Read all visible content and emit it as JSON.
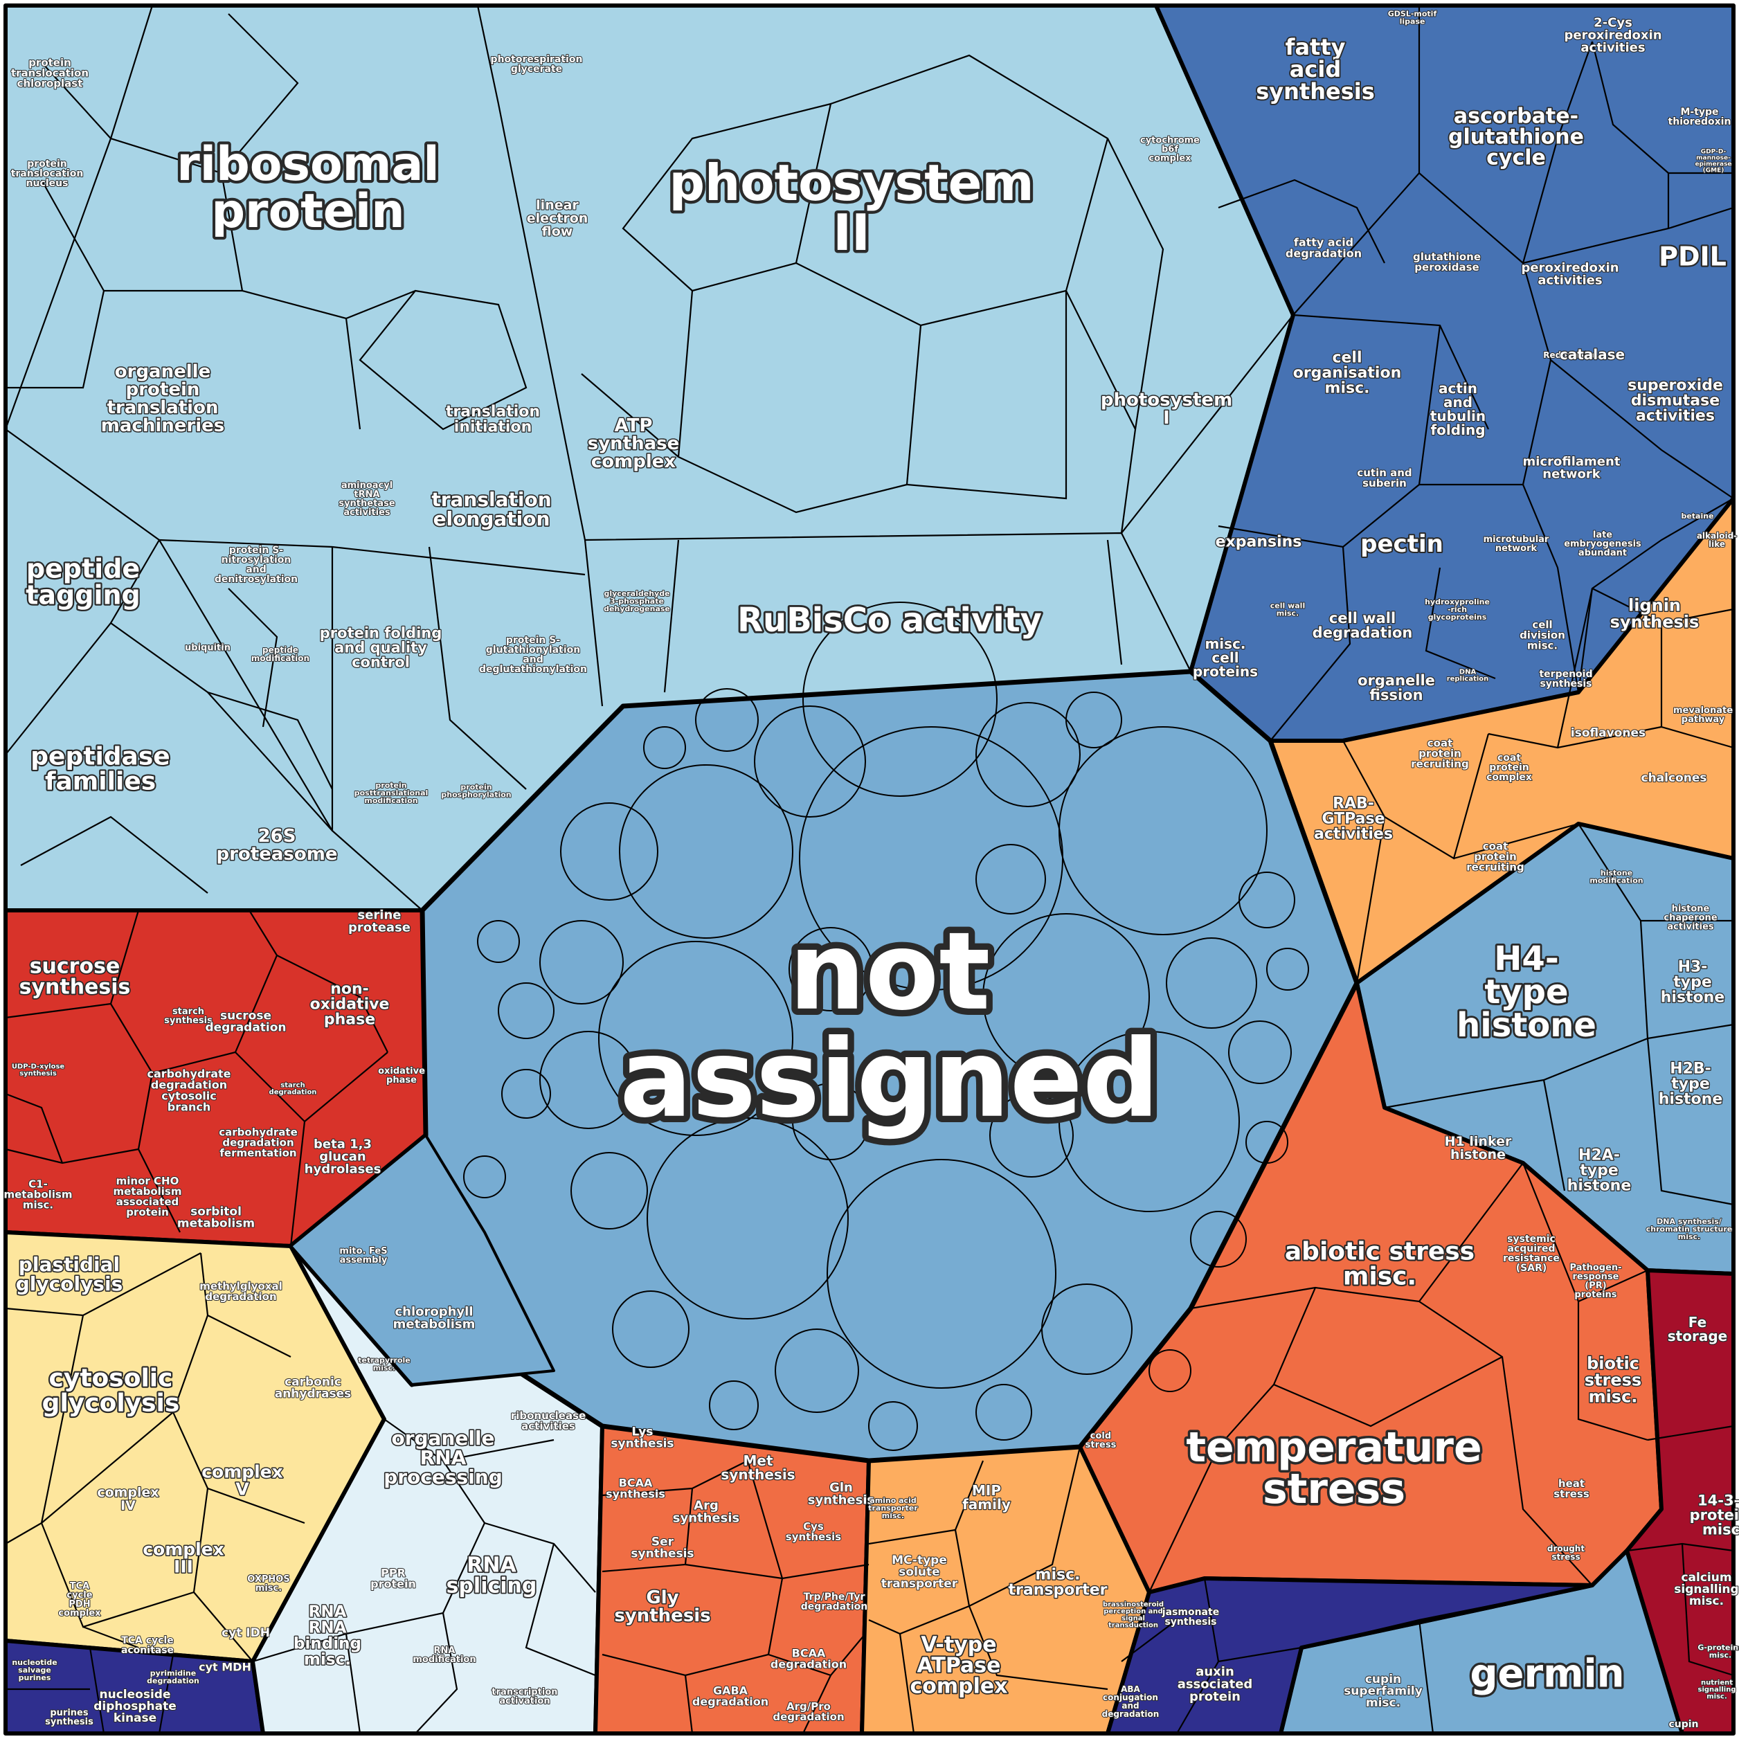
{
  "palette": {
    "light_blue": "#a8d4e6",
    "mid_blue": "#77acd2",
    "dark_blue": "#4672b3",
    "navy": "#2f2f8e",
    "red": "#d8332a",
    "yellow": "#fde69d",
    "pale_blue": "#e2f1f8",
    "orange_red": "#f06d44",
    "orange": "#fdad5f",
    "crimson": "#a50f2a",
    "border": "#000000",
    "label_fill": "#ffffff"
  },
  "labels": {
    "not_assigned": [
      "not",
      "assigned"
    ],
    "ribosomal_protein": [
      "ribosomal",
      "protein"
    ],
    "photosystem_ii": [
      "photosystem",
      "II"
    ],
    "photosystem_i": [
      "photosystem",
      "I"
    ],
    "rubisco": [
      "RuBisCo activity"
    ],
    "atp_synthase": [
      "ATP",
      "synthase",
      "complex"
    ],
    "linear_electron_flow": [
      "linear",
      "electron",
      "flow"
    ],
    "photorespiration": [
      "photorespiration",
      "glycerate"
    ],
    "cytochrome_b6f": [
      "cytochrome",
      "b6f",
      "complex"
    ],
    "translation_initiation": [
      "translation",
      "initiation"
    ],
    "translation_elongation": [
      "translation",
      "elongation"
    ],
    "aminoacyl_trna": [
      "aminoacyl",
      "tRNA",
      "synthetase",
      "activities"
    ],
    "organelle_protein_translation": [
      "organelle",
      "protein",
      "translation",
      "machineries"
    ],
    "protein_translocation_chloroplast": [
      "protein",
      "translocation",
      "chloroplast"
    ],
    "protein_translocation_nucleus": [
      "protein",
      "translocation",
      "nucleus"
    ],
    "peptide_tagging": [
      "peptide",
      "tagging"
    ],
    "peptidase_families": [
      "peptidase",
      "families"
    ],
    "protein_folding": [
      "protein folding",
      "and quality",
      "control"
    ],
    "protein_nitrosylation": [
      "protein S-",
      "nitrosylation",
      "and",
      "denitrosylation"
    ],
    "protein_glutathionylation": [
      "protein S-",
      "glutathionylation",
      "and",
      "deglutathionylation"
    ],
    "ubiquitin": [
      "ubiquitin"
    ],
    "peptide_modification": [
      "peptide",
      "modification"
    ],
    "proteasome_26s": [
      "26S",
      "proteasome"
    ],
    "serine_protease": [
      "serine",
      "protease"
    ],
    "protein_phosphorylation": [
      "protein",
      "phosphorylation"
    ],
    "protein_posttranslational": [
      "protein",
      "posttranslational",
      "modification"
    ],
    "glyceraldehyde": [
      "glyceraldehyde",
      "3-phosphate",
      "dehydrogenase"
    ],
    "fatty_acid_synthesis": [
      "fatty",
      "acid",
      "synthesis"
    ],
    "fatty_acid_degradation": [
      "fatty acid",
      "degradation"
    ],
    "gdsl_lipase": [
      "GDSL-motif",
      "lipase"
    ],
    "peroxiredoxin_2cys": [
      "2-Cys",
      "peroxiredoxin",
      "activities"
    ],
    "ascorbate_glutathione": [
      "ascorbate-",
      "glutathione",
      "cycle"
    ],
    "m_type_thioredoxin": [
      "M-type",
      "thioredoxin"
    ],
    "gdp_mannose": [
      "GDP-D-",
      "mannose-",
      "epimerase",
      "(GME)"
    ],
    "glutathione_peroxidase": [
      "glutathione",
      "peroxidase"
    ],
    "peroxiredoxin": [
      "peroxiredoxin",
      "activities"
    ],
    "pdil": [
      "PDIL"
    ],
    "redox_misc": [
      "Redox misc."
    ],
    "catalase": [
      "catalase"
    ],
    "superoxide_dismutase": [
      "superoxide",
      "dismutase",
      "activities"
    ],
    "cell_organisation": [
      "cell",
      "organisation",
      "misc."
    ],
    "actin_tubulin": [
      "actin",
      "and",
      "tubulin",
      "folding"
    ],
    "microfilament_network": [
      "microfilament",
      "network"
    ],
    "cutin_suberin": [
      "cutin and",
      "suberin"
    ],
    "expansins": [
      "expansins"
    ],
    "pectin": [
      "pectin"
    ],
    "microtubular_network": [
      "microtubular",
      "network"
    ],
    "late_embryogenesis": [
      "late",
      "embryogenesis",
      "abundant"
    ],
    "betaine": [
      "betaine"
    ],
    "alkaloid_like": [
      "alkaloid-",
      "like"
    ],
    "cell_wall_degradation": [
      "cell wall",
      "degradation"
    ],
    "hydroxyproline": [
      "hydroxyproline",
      "-rich",
      "glycoproteins"
    ],
    "cell_division": [
      "cell",
      "division",
      "misc."
    ],
    "cell_wall_misc": [
      "cell wall",
      "misc."
    ],
    "misc_cell_proteins": [
      "misc.",
      "cell",
      "proteins"
    ],
    "organelle_fission": [
      "organelle",
      "fission"
    ],
    "dna_replication": [
      "DNA",
      "replication"
    ],
    "lignin_synthesis": [
      "lignin",
      "synthesis"
    ],
    "terpenoid_synthesis": [
      "terpenoid",
      "synthesis"
    ],
    "mevalonate": [
      "mevalonate",
      "pathway"
    ],
    "isoflavones": [
      "isoflavones"
    ],
    "chalcones": [
      "chalcones"
    ],
    "coat_protein_recruiting": [
      "coat",
      "protein",
      "recruiting"
    ],
    "coat_protein_complex": [
      "coat",
      "protein",
      "complex"
    ],
    "rab_gtpase": [
      "RAB-",
      "GTPase",
      "activities"
    ],
    "coat_protein_recruiting_2": [
      "coat",
      "protein",
      "recruiting"
    ],
    "histone_modification": [
      "histone",
      "modification"
    ],
    "histone_chaperone": [
      "histone",
      "chaperone",
      "activities"
    ],
    "h4_histone": [
      "H4-",
      "type",
      "histone"
    ],
    "h3_histone": [
      "H3-",
      "type",
      "histone"
    ],
    "h2b_histone": [
      "H2B-",
      "type",
      "histone"
    ],
    "h1_linker": [
      "H1 linker",
      "histone"
    ],
    "h2a_histone": [
      "H2A-",
      "type",
      "histone"
    ],
    "dna_synthesis": [
      "DNA synthesis/",
      "chromatin structure",
      "misc."
    ],
    "sucrose_synthesis": [
      "sucrose",
      "synthesis"
    ],
    "starch_synthesis": [
      "starch",
      "synthesis"
    ],
    "sucrose_degradation": [
      "sucrose",
      "degradation"
    ],
    "non_oxidative": [
      "non-",
      "oxidative",
      "phase"
    ],
    "oxidative_phase": [
      "oxidative",
      "phase"
    ],
    "udp_xylose": [
      "UDP-D-xylose",
      "synthesis"
    ],
    "carbohydrate_cytosolic": [
      "carbohydrate",
      "degradation",
      "cytosolic",
      "branch"
    ],
    "starch_degradation": [
      "starch",
      "degradation"
    ],
    "carbohydrate_fermentation": [
      "carbohydrate",
      "degradation",
      "fermentation"
    ],
    "beta_glucan": [
      "beta 1,3",
      "glucan",
      "hydrolases"
    ],
    "minor_cho": [
      "minor CHO",
      "metabolism",
      "associated",
      "protein"
    ],
    "c1_metabolism": [
      "C1-",
      "metabolism",
      "misc."
    ],
    "sorbitol": [
      "sorbitol",
      "metabolism"
    ],
    "mito_fes": [
      "mito. FeS",
      "assembly"
    ],
    "chlorophyll": [
      "chlorophyll",
      "metabolism"
    ],
    "tetrapyrrole": [
      "tetrapyrrole",
      "misc."
    ],
    "plastidial_glycolysis": [
      "plastidial",
      "glycolysis"
    ],
    "methylglyoxal": [
      "methylglyoxal",
      "degradation"
    ],
    "cytosolic_glycolysis": [
      "cytosolic",
      "glycolysis"
    ],
    "carbonic_anhydrases": [
      "carbonic",
      "anhydrases"
    ],
    "complex_iv": [
      "complex",
      "IV"
    ],
    "complex_v": [
      "complex",
      "V"
    ],
    "complex_iii": [
      "complex",
      "III"
    ],
    "oxphos": [
      "OXPHOS",
      "misc."
    ],
    "tca_pdh": [
      "TCA",
      "cycle",
      "PDH",
      "complex"
    ],
    "tca_aconitase": [
      "TCA cycle",
      "aconitase"
    ],
    "cyt_idh": [
      "cyt IDH"
    ],
    "cyt_mdh": [
      "cyt MDH"
    ],
    "organelle_rna": [
      "organelle",
      "RNA",
      "processing"
    ],
    "ribonuclease": [
      "ribonuclease",
      "activities"
    ],
    "ppr_protein": [
      "PPR",
      "protein"
    ],
    "rna_splicing": [
      "RNA",
      "splicing"
    ],
    "rna_binding": [
      "RNA",
      "RNA",
      "binding",
      "misc."
    ],
    "rna_modification": [
      "RNA",
      "modification"
    ],
    "transcription_activation": [
      "transcription",
      "activation"
    ],
    "nucleoside_diphosphate": [
      "nucleoside",
      "diphosphate",
      "kinase"
    ],
    "purines_synthesis": [
      "purines",
      "synthesis"
    ],
    "nucleotide_salvage": [
      "nucleotide",
      "salvage",
      "purines"
    ],
    "pyrimidine_degradation": [
      "pyrimidine",
      "degradation"
    ],
    "lys_synthesis": [
      "Lys",
      "synthesis"
    ],
    "met_synthesis": [
      "Met",
      "synthesis"
    ],
    "bcaa_synthesis": [
      "BCAA",
      "synthesis"
    ],
    "arg_synthesis": [
      "Arg",
      "synthesis"
    ],
    "gln_synthesis": [
      "Gln",
      "synthesis"
    ],
    "cys_synthesis": [
      "Cys",
      "synthesis"
    ],
    "ser_synthesis": [
      "Ser",
      "synthesis"
    ],
    "gly_synthesis": [
      "Gly",
      "synthesis"
    ],
    "trp_phe_tyr": [
      "Trp/Phe/Tyr",
      "degradation"
    ],
    "bcaa_degradation": [
      "BCAA",
      "degradation"
    ],
    "gaba_degradation": [
      "GABA",
      "degradation"
    ],
    "arg_pro_degradation": [
      "Arg/Pro",
      "degradation"
    ],
    "mip_family": [
      "MIP",
      "family"
    ],
    "amino_acid_transporter": [
      "amino acid",
      "transporter",
      "misc."
    ],
    "mc_type_transporter": [
      "MC-type",
      "solute",
      "transporter"
    ],
    "misc_transporter": [
      "misc.",
      "transporter"
    ],
    "v_type_atpase": [
      "V-type",
      "ATPase",
      "complex"
    ],
    "abiotic_stress": [
      "abiotic stress",
      "misc."
    ],
    "systemic_acquired": [
      "systemic",
      "acquired",
      "resistance",
      "(SAR)"
    ],
    "pathogen_response": [
      "Pathogen-",
      "response",
      "(PR)",
      "proteins"
    ],
    "fe_storage": [
      "Fe",
      "storage"
    ],
    "biotic_stress": [
      "biotic",
      "stress",
      "misc."
    ],
    "temperature_stress": [
      "temperature",
      "stress"
    ],
    "cold_stress": [
      "cold",
      "stress"
    ],
    "heat_stress": [
      "heat",
      "stress"
    ],
    "drought_stress": [
      "drought",
      "stress"
    ],
    "proteins_14_3_3": [
      "14-3-3",
      "proteins",
      "misc."
    ],
    "calcium_signalling": [
      "calcium",
      "signalling",
      "misc."
    ],
    "g_proteins": [
      "G-proteins",
      "misc."
    ],
    "nutrient_signalling": [
      "nutrient",
      "signalling",
      "misc."
    ],
    "germin": [
      "germin"
    ],
    "cupin_superfamily": [
      "cupin",
      "superfamily",
      "misc."
    ],
    "cupin": [
      "cupin"
    ],
    "jasmonate_synthesis": [
      "jasmonate",
      "synthesis"
    ],
    "brassinosteroid": [
      "brassinosteroid",
      "perception and",
      "signal",
      "transduction"
    ],
    "auxin_protein": [
      "auxin",
      "associated",
      "protein"
    ],
    "aba_conjugation": [
      "ABA",
      "conjugation",
      "and",
      "degradation"
    ]
  }
}
